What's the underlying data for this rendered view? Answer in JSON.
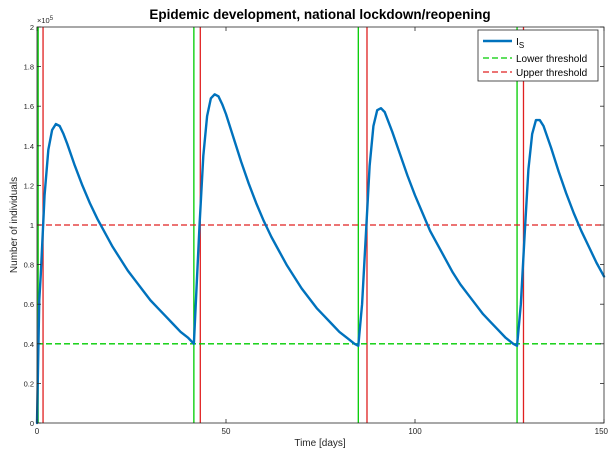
{
  "chart_data": {
    "type": "line",
    "title": "Epidemic development, national lockdown/reopening",
    "xlabel": "Time [days]",
    "ylabel": "Number of individuals",
    "y_exponent_label": "×10",
    "y_exponent_power": "5",
    "xlim": [
      0,
      150
    ],
    "ylim": [
      0,
      2
    ],
    "xticks": [
      0,
      50,
      100,
      150
    ],
    "yticks": [
      0,
      0.2,
      0.4,
      0.6,
      0.8,
      1,
      1.2,
      1.4,
      1.6,
      1.8,
      2
    ],
    "ytick_labels": [
      "0",
      "0.2",
      "0.4",
      "0.6",
      "0.8",
      "1",
      "1.2",
      "1.4",
      "1.6",
      "1.8",
      "2"
    ],
    "grid": false,
    "legend_position": "top-right",
    "legend": {
      "series_label": "I",
      "series_subscript": "S",
      "lower_label": "Lower threshold",
      "upper_label": "Upper threshold"
    },
    "series": [
      {
        "name": "I_S",
        "color": "#0072BD",
        "x": [
          0,
          0.6,
          1.0,
          1.5,
          2.0,
          3.0,
          4.0,
          5.0,
          6.0,
          7.0,
          8.0,
          10.0,
          12.0,
          14.0,
          16.0,
          18.0,
          20.0,
          22.0,
          24.0,
          26.0,
          28.0,
          30.0,
          32.0,
          34.0,
          36.0,
          38.0,
          40.0,
          41.0,
          41.5,
          42.0,
          43.0,
          44.0,
          45.0,
          46.0,
          47.0,
          48.0,
          49.0,
          50.0,
          52.0,
          54.0,
          56.0,
          58.0,
          60.0,
          62.0,
          64.0,
          66.0,
          68.0,
          70.0,
          72.0,
          74.0,
          76.0,
          78.0,
          80.0,
          82.0,
          84.0,
          85.0,
          86.0,
          87.0,
          88.0,
          89.0,
          90.0,
          91.0,
          92.0,
          94.0,
          96.0,
          98.0,
          100.0,
          102.0,
          104.0,
          106.0,
          108.0,
          110.0,
          112.0,
          114.0,
          116.0,
          118.0,
          120.0,
          122.0,
          124.0,
          126.0,
          127.0,
          128.0,
          129.0,
          130.0,
          131.0,
          132.0,
          133.0,
          134.0,
          136.0,
          138.0,
          140.0,
          142.0,
          144.0,
          146.0,
          148.0,
          150.0
        ],
        "y": [
          0.0,
          0.62,
          0.75,
          0.95,
          1.15,
          1.38,
          1.48,
          1.51,
          1.5,
          1.46,
          1.41,
          1.3,
          1.2,
          1.11,
          1.03,
          0.96,
          0.89,
          0.83,
          0.77,
          0.72,
          0.67,
          0.62,
          0.58,
          0.54,
          0.5,
          0.46,
          0.43,
          0.41,
          0.4,
          0.6,
          1.0,
          1.35,
          1.55,
          1.64,
          1.66,
          1.65,
          1.61,
          1.56,
          1.44,
          1.32,
          1.21,
          1.11,
          1.02,
          0.94,
          0.87,
          0.8,
          0.74,
          0.68,
          0.63,
          0.58,
          0.54,
          0.5,
          0.46,
          0.43,
          0.4,
          0.39,
          0.6,
          0.95,
          1.3,
          1.5,
          1.58,
          1.59,
          1.57,
          1.47,
          1.36,
          1.25,
          1.15,
          1.06,
          0.97,
          0.9,
          0.83,
          0.76,
          0.7,
          0.65,
          0.6,
          0.55,
          0.51,
          0.47,
          0.43,
          0.4,
          0.39,
          0.6,
          0.95,
          1.28,
          1.46,
          1.53,
          1.53,
          1.5,
          1.39,
          1.27,
          1.16,
          1.06,
          0.97,
          0.89,
          0.81,
          0.74
        ]
      }
    ],
    "hlines": [
      {
        "name": "Lower threshold",
        "y": 0.4,
        "color": "#00CC00",
        "dashed": true
      },
      {
        "name": "Upper threshold",
        "y": 1.0,
        "color": "#E02020",
        "dashed": true
      }
    ],
    "vlines": [
      {
        "x": 0.3,
        "color": "#00CC00"
      },
      {
        "x": 1.6,
        "color": "#E02020"
      },
      {
        "x": 41.5,
        "color": "#00CC00"
      },
      {
        "x": 43.2,
        "color": "#E02020"
      },
      {
        "x": 85.0,
        "color": "#00CC00"
      },
      {
        "x": 87.3,
        "color": "#E02020"
      },
      {
        "x": 127.0,
        "color": "#00CC00"
      },
      {
        "x": 128.7,
        "color": "#E02020"
      }
    ]
  }
}
